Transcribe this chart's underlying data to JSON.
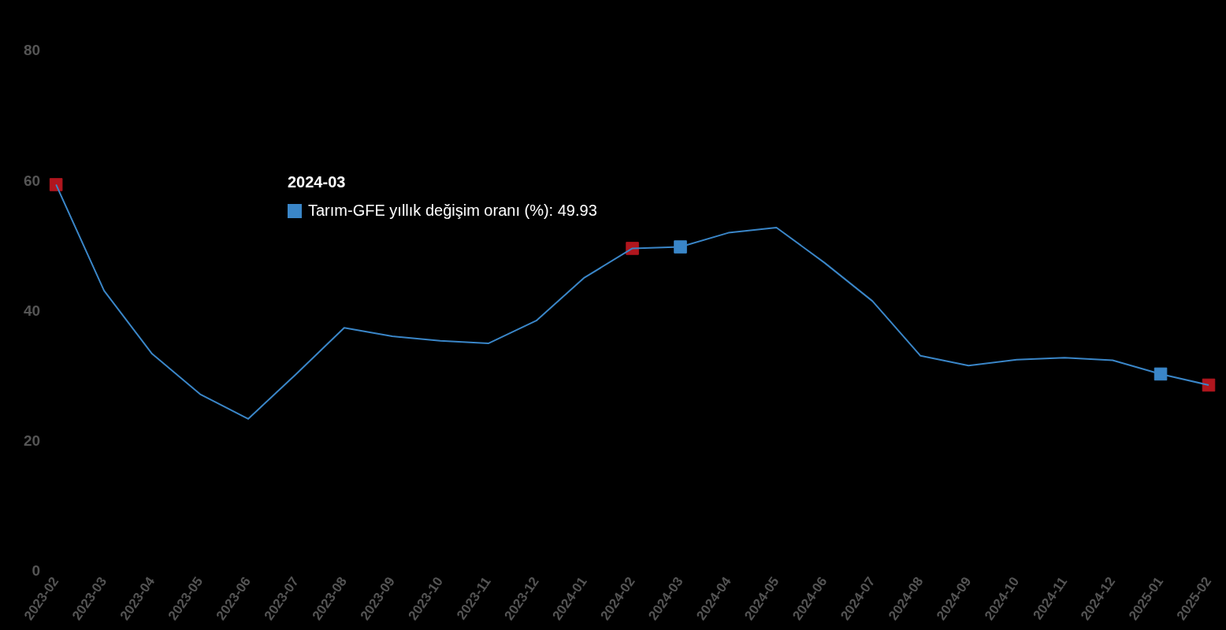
{
  "chart_data": {
    "type": "line",
    "categories": [
      "2023-02",
      "2023-03",
      "2023-04",
      "2023-05",
      "2023-06",
      "2023-07",
      "2023-08",
      "2023-09",
      "2023-10",
      "2023-11",
      "2023-12",
      "2024-01",
      "2024-02",
      "2024-03",
      "2024-04",
      "2024-05",
      "2024-06",
      "2024-07",
      "2024-08",
      "2024-09",
      "2024-10",
      "2024-11",
      "2024-12",
      "2025-01",
      "2025-02"
    ],
    "series": [
      {
        "color": "#3a86c8",
        "values": [
          59.5,
          43.2,
          33.5,
          27.3,
          23.5,
          30.4,
          37.5,
          36.2,
          35.5,
          35.1,
          38.6,
          45.2,
          49.7,
          49.93,
          52.1,
          52.9,
          47.5,
          41.6,
          33.2,
          31.7,
          32.6,
          32.9,
          32.5,
          30.4,
          28.7
        ]
      },
      {
        "type": "scatter",
        "marker": "square",
        "color": "#b0161e",
        "values": [
          59.5,
          null,
          null,
          null,
          null,
          null,
          null,
          null,
          null,
          null,
          null,
          null,
          49.7,
          null,
          null,
          null,
          null,
          null,
          null,
          null,
          null,
          null,
          null,
          null,
          28.7
        ]
      },
      {
        "type": "scatter",
        "marker": "square",
        "color": "#3a86c8",
        "values": [
          null,
          null,
          null,
          null,
          null,
          null,
          null,
          null,
          null,
          null,
          null,
          null,
          null,
          49.93,
          null,
          null,
          null,
          null,
          null,
          null,
          null,
          null,
          null,
          30.4,
          null
        ]
      }
    ],
    "ylim": [
      0,
      80
    ],
    "yticks": [
      0,
      20,
      40,
      60,
      80
    ],
    "grid": false,
    "legend": false,
    "marker": "none",
    "annotations": [
      "2024-03",
      "Tarım-GFE yıllık değişim oranı (%): 49.93"
    ]
  }
}
